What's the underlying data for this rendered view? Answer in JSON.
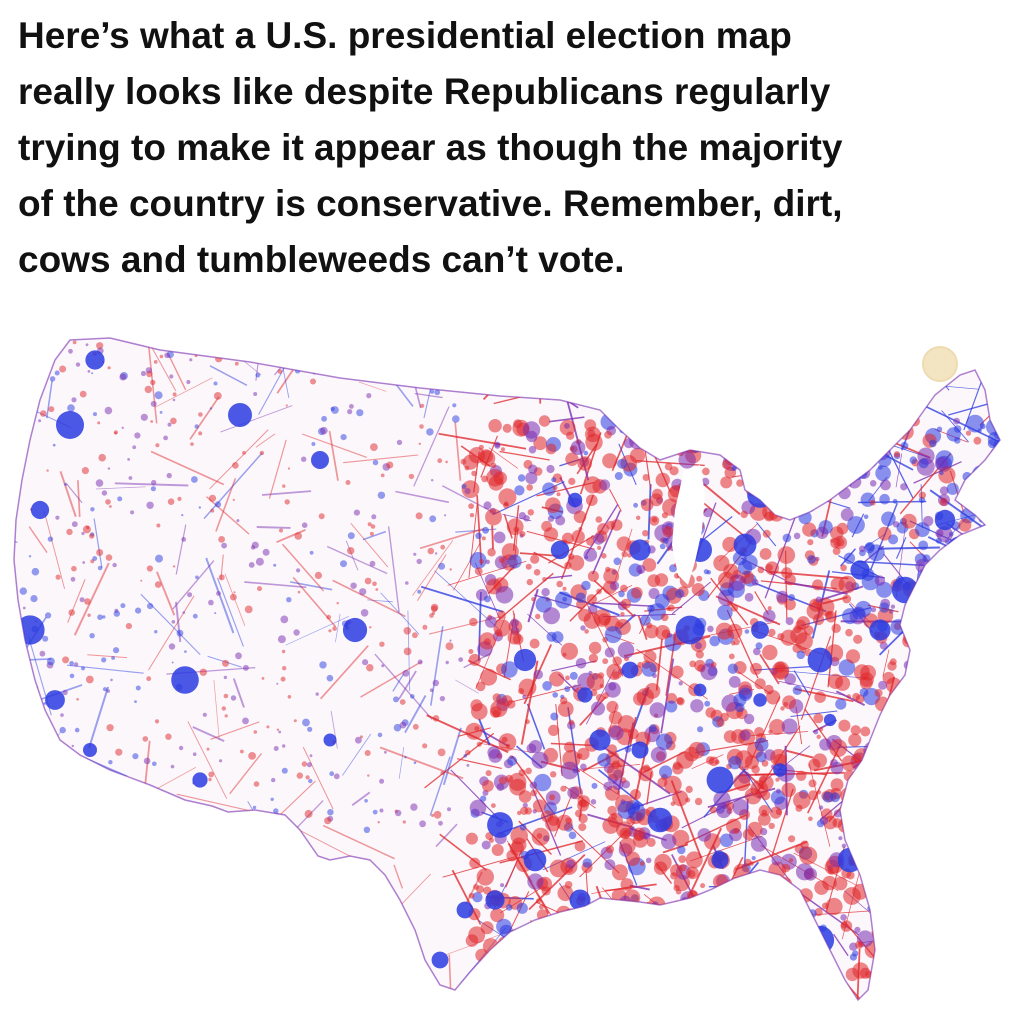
{
  "caption": {
    "lines": [
      "Here’s what a U.S. presidential election map",
      "really looks like despite Republicans regularly",
      "trying to make it appear as though the majority",
      "of the country is conservative. Remember, dirt,",
      "cows and tumbleweeds can’t vote."
    ]
  },
  "map": {
    "subject": "contiguous United States",
    "style": "road-network dot-density map colored by vote",
    "colors": {
      "democrat": "#2b3be0",
      "republican": "#e0262a",
      "mixed": "#7a2bb0",
      "background": "#ffffff"
    }
  },
  "watermark": {
    "icon": "round-seal-icon"
  }
}
